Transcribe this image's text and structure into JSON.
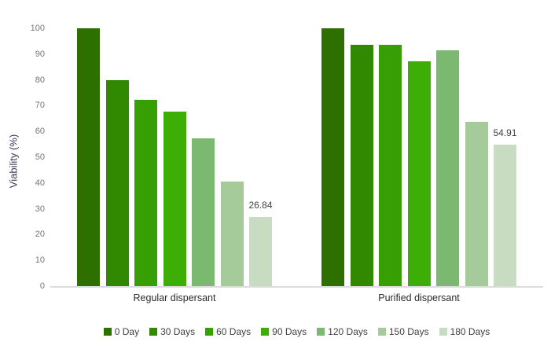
{
  "chart_data": {
    "type": "bar",
    "title": "",
    "xlabel": "",
    "ylabel": "Viability (%)",
    "ylim": [
      0,
      100
    ],
    "yticks": [
      0,
      10,
      20,
      30,
      40,
      50,
      60,
      70,
      80,
      90,
      100
    ],
    "grid": false,
    "legend_position": "bottom",
    "categories": [
      "Regular dispersant",
      "Purified dispersant"
    ],
    "series": [
      {
        "name": "0 Day",
        "color": "#2d7000",
        "values": [
          100,
          100
        ]
      },
      {
        "name": "30 Days",
        "color": "#318901",
        "values": [
          79.9,
          93.7
        ]
      },
      {
        "name": "60 Days",
        "color": "#379e03",
        "values": [
          72.2,
          93.5
        ]
      },
      {
        "name": "90 Days",
        "color": "#3dae06",
        "values": [
          67.6,
          87.2
        ]
      },
      {
        "name": "120 Days",
        "color": "#7bb971",
        "values": [
          57.4,
          91.4
        ]
      },
      {
        "name": "150 Days",
        "color": "#a4cb99",
        "values": [
          40.5,
          63.6
        ]
      },
      {
        "name": "180 Days",
        "color": "#c7dcc1",
        "values": [
          26.84,
          54.91
        ],
        "data_labels": [
          "26.84",
          "54.91"
        ]
      }
    ]
  },
  "colors": {
    "background": "#ffffff",
    "axis_line": "#dcdcdc",
    "tick_label": "#757575",
    "category_label": "#2b2b2b",
    "legend_label": "#404040",
    "data_label": "#404040",
    "y_axis_title": "#3b3b55"
  }
}
